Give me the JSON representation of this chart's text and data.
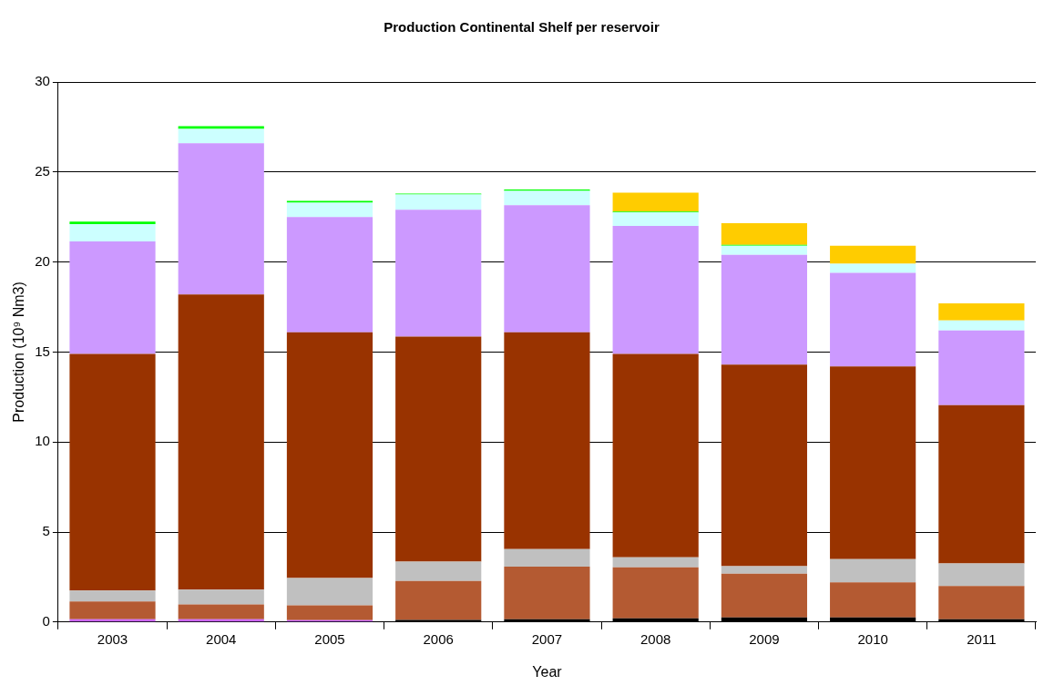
{
  "chart_data": {
    "type": "bar",
    "title": "Production Continental Shelf per reservoir",
    "xlabel": "Year",
    "ylabel": "Production (10⁹ Nm3)",
    "categories": [
      "2003",
      "2004",
      "2005",
      "2006",
      "2007",
      "2008",
      "2009",
      "2010",
      "2011"
    ],
    "stacked": true,
    "grid": "y",
    "ylim": [
      0,
      30
    ],
    "yticks": [
      0,
      5,
      10,
      15,
      20,
      25,
      30
    ],
    "series": [
      {
        "colors": [
          "#cc66ff",
          "#cc66ff",
          "#cc66ff",
          "#000000",
          "#000000",
          "#000000",
          "#000000",
          "#000000",
          "#000000"
        ],
        "values": [
          0.15,
          0.15,
          0.1,
          0.12,
          0.15,
          0.2,
          0.25,
          0.25,
          0.15
        ]
      },
      {
        "color": "#b45a32",
        "values": [
          0.99,
          0.83,
          0.83,
          2.16,
          2.93,
          2.84,
          2.44,
          1.95,
          1.85
        ]
      },
      {
        "color": "#c0c0c0",
        "values": [
          0.61,
          0.82,
          1.52,
          1.07,
          0.97,
          0.56,
          0.41,
          1.3,
          1.25
        ]
      },
      {
        "color": "#993300",
        "values": [
          13.15,
          16.4,
          13.65,
          12.5,
          12.05,
          11.3,
          11.2,
          10.7,
          8.8
        ]
      },
      {
        "color": "#cc99ff",
        "values": [
          6.25,
          8.4,
          6.4,
          7.05,
          7.05,
          7.1,
          6.1,
          5.2,
          4.15
        ]
      },
      {
        "color": "#ccffff",
        "values": [
          0.95,
          0.8,
          0.8,
          0.85,
          0.8,
          0.75,
          0.5,
          0.5,
          0.55
        ]
      },
      {
        "color": "#00ff00",
        "values": [
          0.15,
          0.15,
          0.1,
          0.05,
          0.08,
          0.05,
          0.05,
          0,
          0
        ]
      },
      {
        "color": "#ffcc00",
        "values": [
          0,
          0,
          0,
          0,
          0,
          1.05,
          1.2,
          1.0,
          0.95
        ]
      }
    ]
  }
}
